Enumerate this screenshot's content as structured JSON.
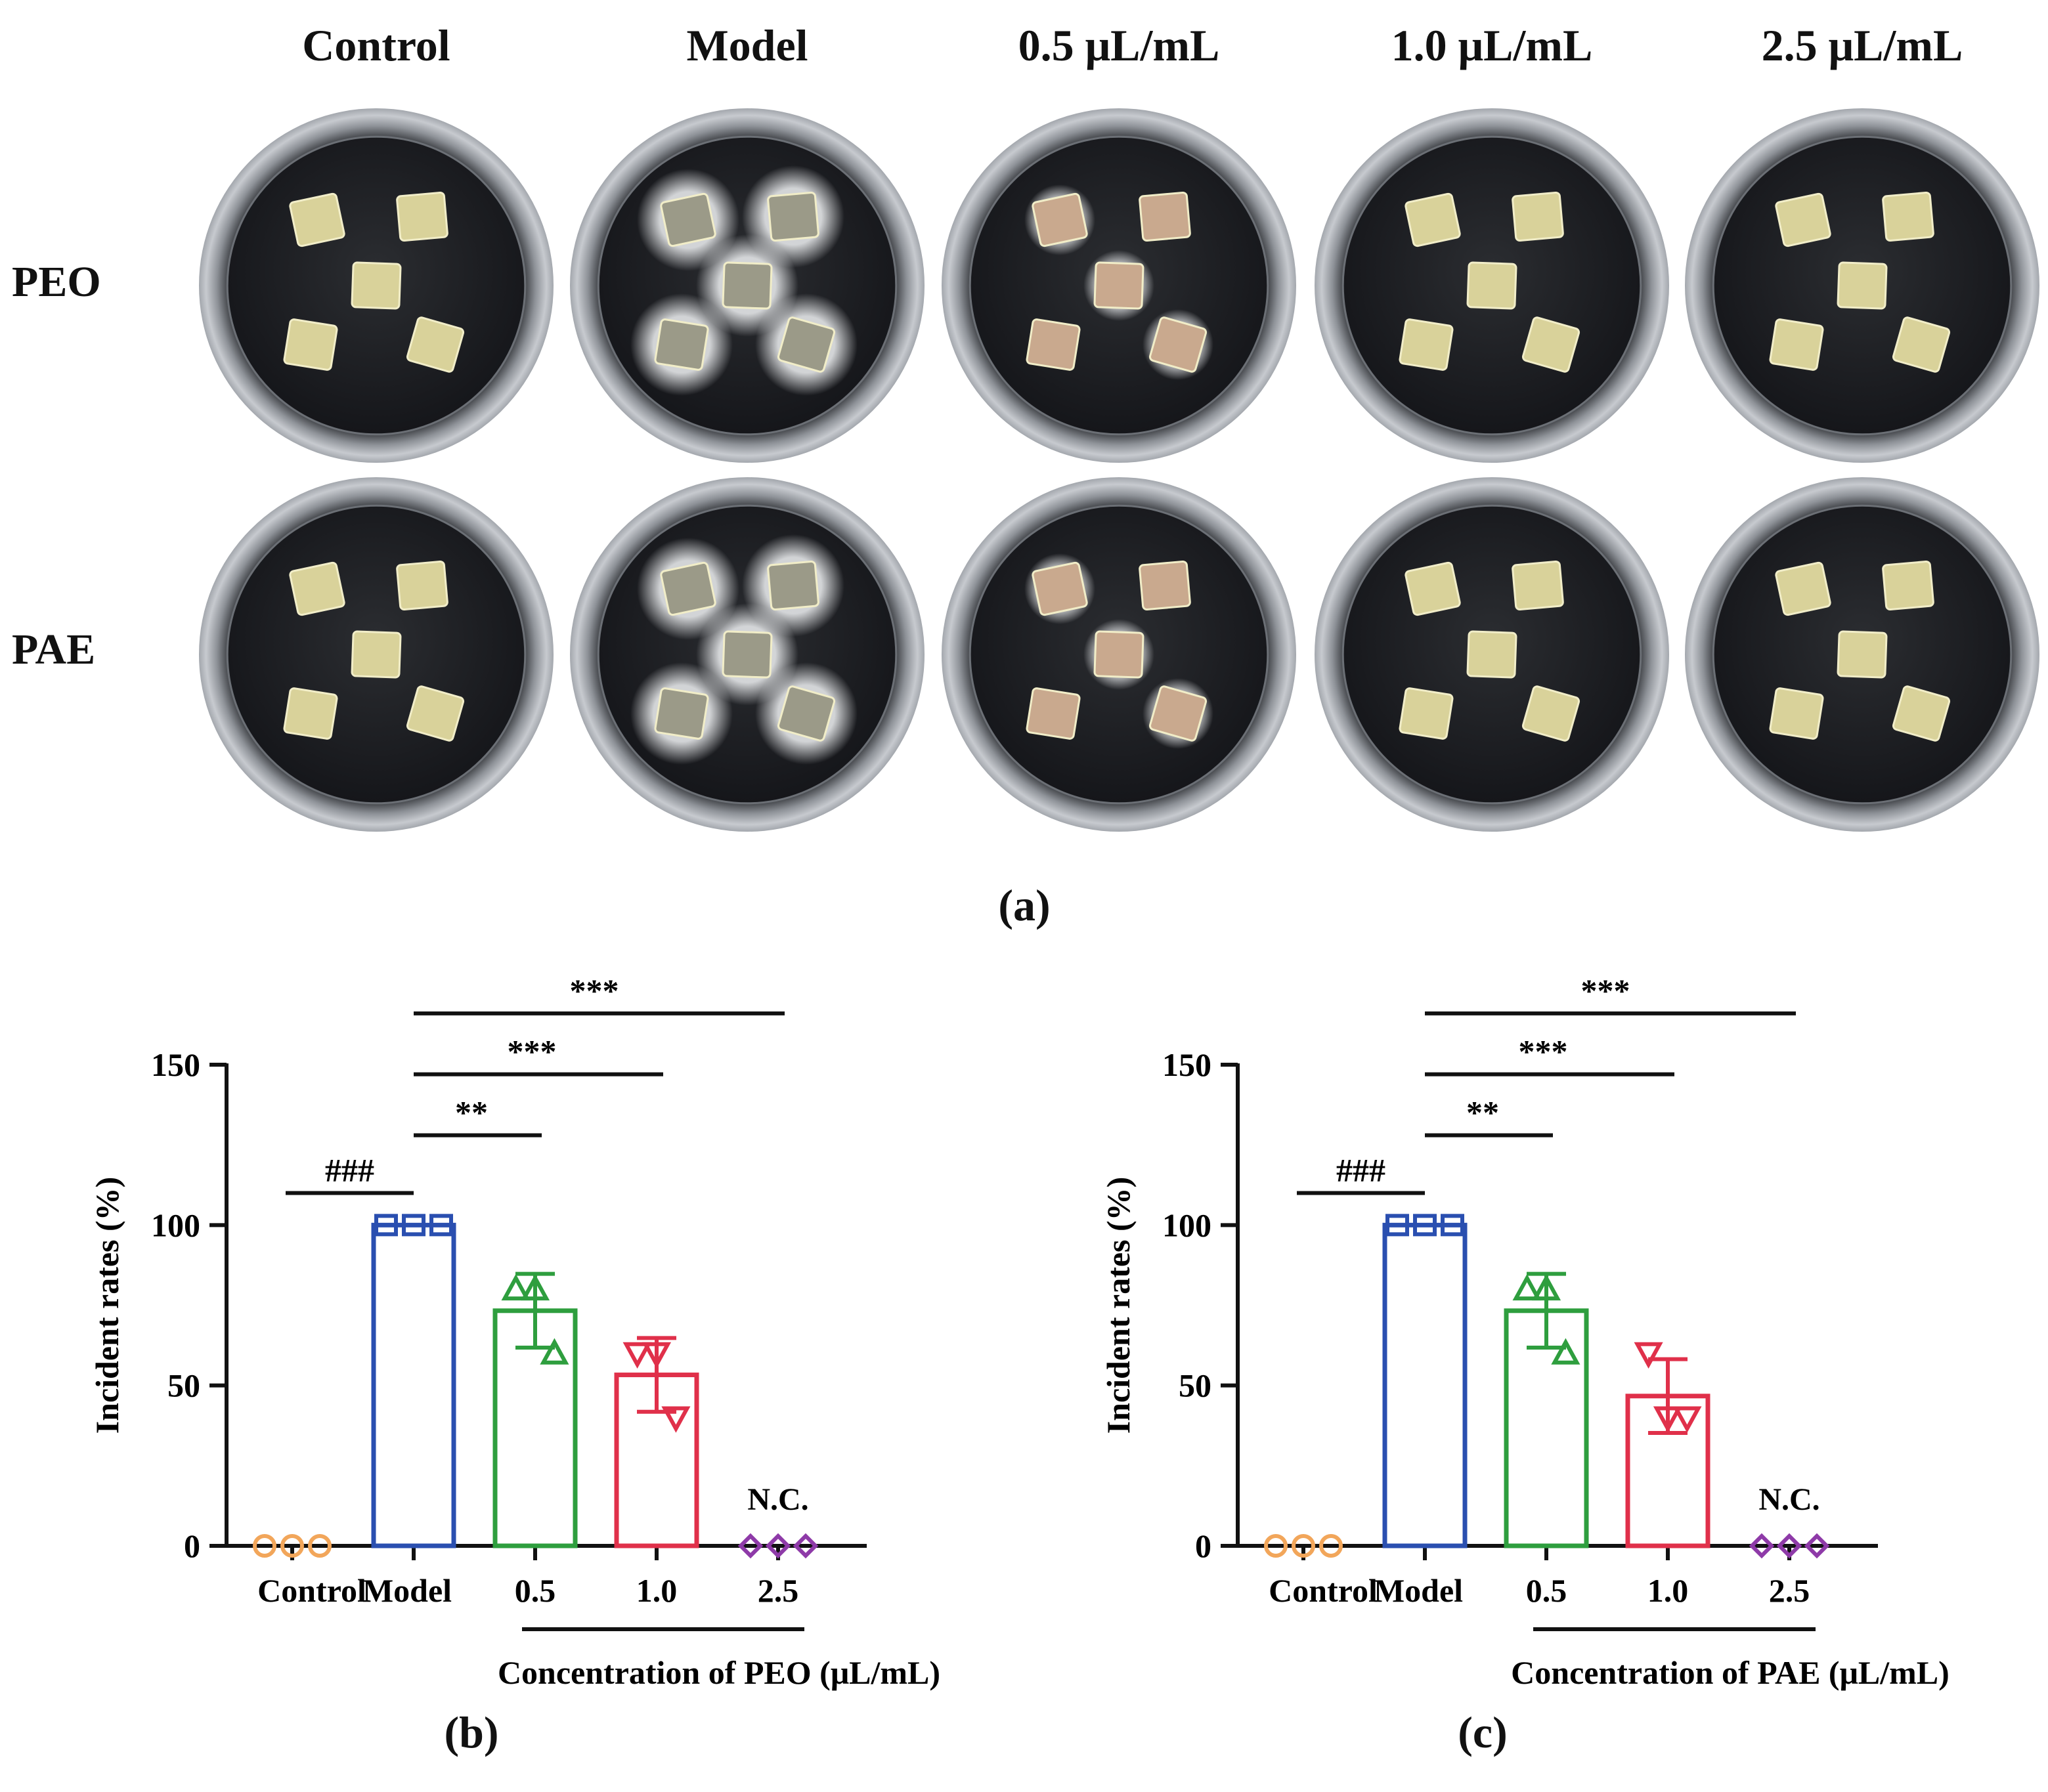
{
  "panel_a": {
    "column_labels": [
      "Control",
      "Model",
      "0.5 μL/mL",
      "1.0 μL/mL",
      "2.5 μL/mL"
    ],
    "row_labels": [
      "PEO",
      "PAE"
    ],
    "panel_label": "(a)"
  },
  "chart_data": [
    {
      "type": "bar",
      "panel_label": "(b)",
      "categories": [
        "Control",
        "Model",
        "0.5",
        "1.0",
        "2.5"
      ],
      "values": [
        0,
        100,
        73.3,
        53.3,
        0
      ],
      "errors": [
        0,
        0,
        11.5,
        11.5,
        0
      ],
      "points": [
        [
          0,
          0,
          0
        ],
        [
          100,
          100,
          100
        ],
        [
          80,
          80,
          60
        ],
        [
          60,
          60,
          40
        ],
        [
          0,
          0,
          0
        ]
      ],
      "colors": [
        "#f2a65a",
        "#2a4fb0",
        "#2e9e3e",
        "#e0304a",
        "#8e3aa8"
      ],
      "markers": [
        "circle",
        "square",
        "triangle-up",
        "triangle-down",
        "diamond"
      ],
      "ylabel": "Incident rates (%)",
      "xlabel": "Concentration of PEO (μL/mL)",
      "ylim": [
        0,
        150
      ],
      "yticks": [
        0,
        50,
        100,
        150
      ],
      "na_label": "N.C.",
      "significance": [
        {
          "from": 0,
          "to": 1,
          "label": "###"
        },
        {
          "from": 1,
          "to": 2,
          "label": "**"
        },
        {
          "from": 1,
          "to": 3,
          "label": "***"
        },
        {
          "from": 1,
          "to": 4,
          "label": "***"
        }
      ]
    },
    {
      "type": "bar",
      "panel_label": "(c)",
      "categories": [
        "Control",
        "Model",
        "0.5",
        "1.0",
        "2.5"
      ],
      "values": [
        0,
        100,
        73.3,
        46.7,
        0
      ],
      "errors": [
        0,
        0,
        11.5,
        11.5,
        0
      ],
      "points": [
        [
          0,
          0,
          0
        ],
        [
          100,
          100,
          100
        ],
        [
          80,
          80,
          60
        ],
        [
          60,
          40,
          40
        ],
        [
          0,
          0,
          0
        ]
      ],
      "colors": [
        "#f2a65a",
        "#2a4fb0",
        "#2e9e3e",
        "#e0304a",
        "#8e3aa8"
      ],
      "markers": [
        "circle",
        "square",
        "triangle-up",
        "triangle-down",
        "diamond"
      ],
      "ylabel": "Incident rates (%)",
      "xlabel": "Concentration of PAE (μL/mL)",
      "ylim": [
        0,
        150
      ],
      "yticks": [
        0,
        50,
        100,
        150
      ],
      "na_label": "N.C.",
      "significance": [
        {
          "from": 0,
          "to": 1,
          "label": "###"
        },
        {
          "from": 1,
          "to": 2,
          "label": "**"
        },
        {
          "from": 1,
          "to": 3,
          "label": "***"
        },
        {
          "from": 1,
          "to": 4,
          "label": "***"
        }
      ]
    }
  ]
}
